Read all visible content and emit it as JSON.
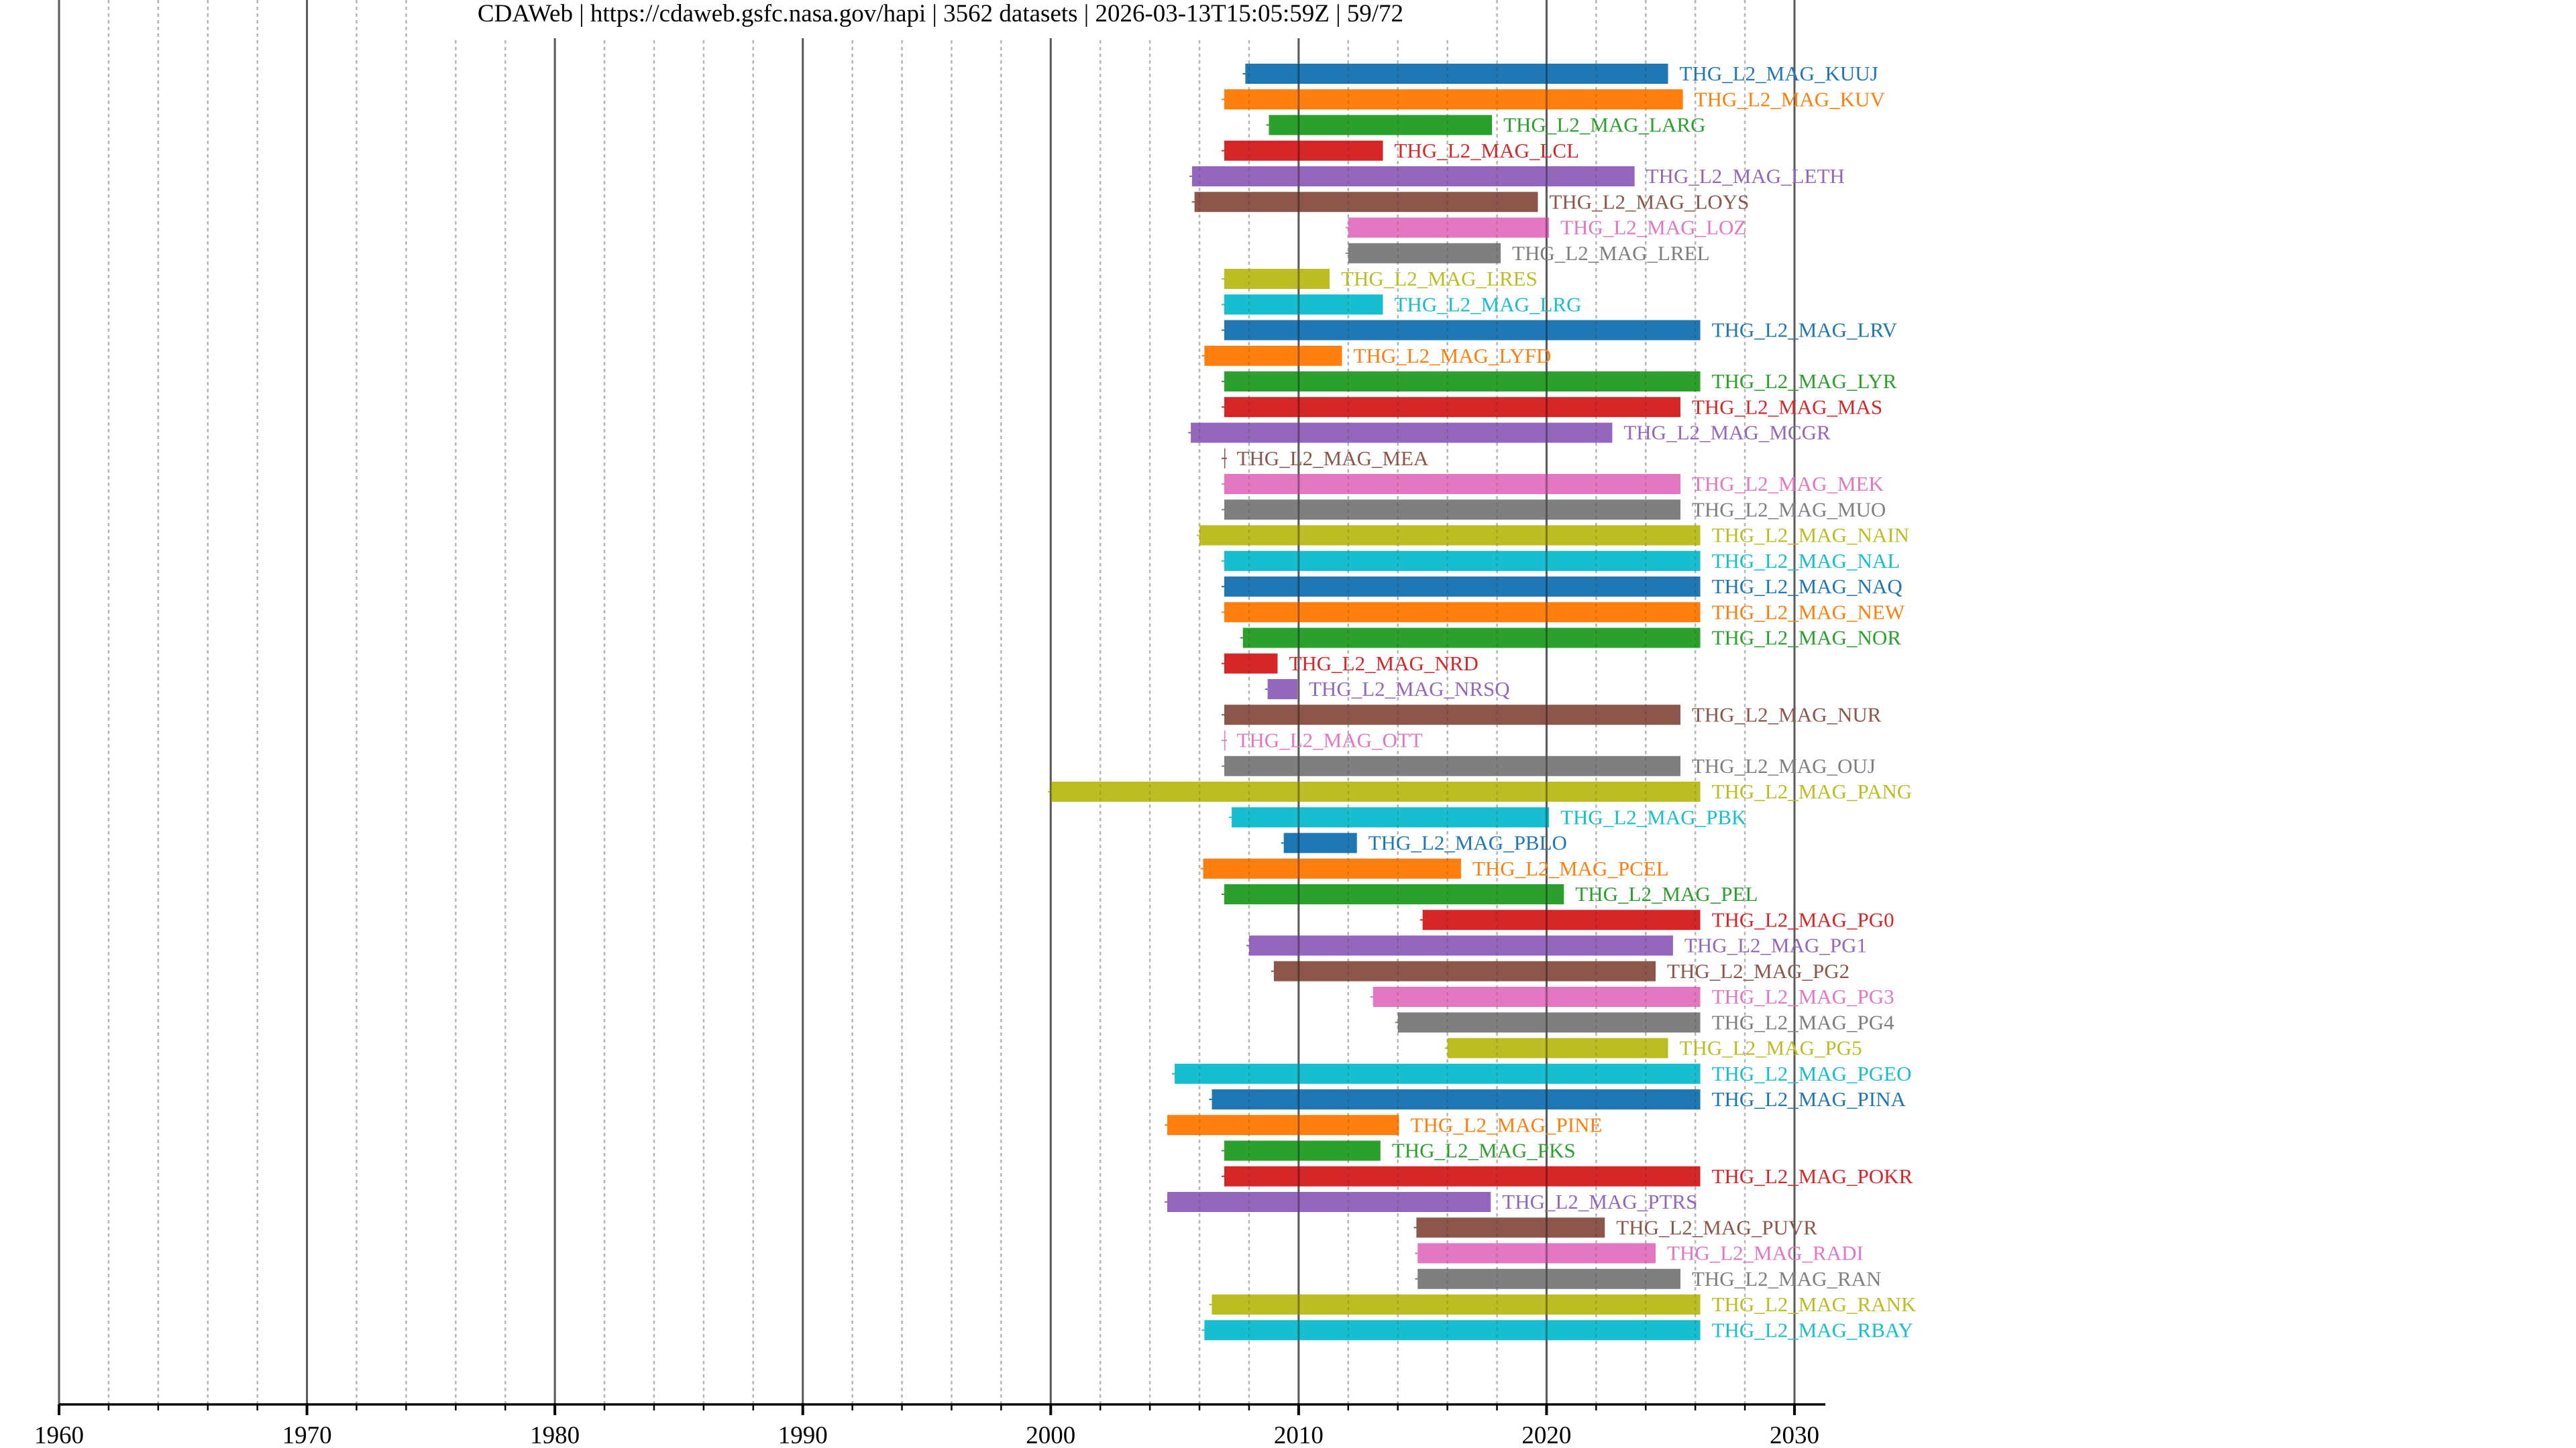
{
  "chart_data": {
    "type": "timeline-bar",
    "title": "CDAWeb | https://cdaweb.gsfc.nasa.gov/hapi | 3562 datasets | 2026-03-13T15:05:59Z | 59/72",
    "xlabel": "",
    "ylabel": "",
    "xlim": [
      1960,
      2031.25
    ],
    "x_ticks_major": [
      1960,
      1970,
      1980,
      1990,
      2000,
      2010,
      2020,
      2030
    ],
    "x_tick_labels": [
      "1960",
      "1970",
      "1980",
      "1990",
      "2000",
      "2010",
      "2020",
      "2030"
    ],
    "x_ticks_minor_step": 2,
    "grid": {
      "major": "solid gray",
      "minor": "dashed light gray"
    },
    "palette": [
      "#1f77b4",
      "#ff7f0e",
      "#2ca02c",
      "#d62728",
      "#9467bd",
      "#8c564b",
      "#e377c2",
      "#7f7f7f",
      "#bcbd22",
      "#17becf"
    ],
    "series": [
      {
        "name": "THG_L2_MAG_KUUJ",
        "start": 2007.85,
        "end": 2024.9
      },
      {
        "name": "THG_L2_MAG_KUV",
        "start": 2007.0,
        "end": 2025.5
      },
      {
        "name": "THG_L2_MAG_LARG",
        "start": 2008.8,
        "end": 2017.8
      },
      {
        "name": "THG_L2_MAG_LCL",
        "start": 2007.0,
        "end": 2013.4
      },
      {
        "name": "THG_L2_MAG_LETH",
        "start": 2005.7,
        "end": 2023.55
      },
      {
        "name": "THG_L2_MAG_LOYS",
        "start": 2005.8,
        "end": 2019.65
      },
      {
        "name": "THG_L2_MAG_LOZ",
        "start": 2012.0,
        "end": 2020.1
      },
      {
        "name": "THG_L2_MAG_LREL",
        "start": 2012.0,
        "end": 2018.15
      },
      {
        "name": "THG_L2_MAG_LRES",
        "start": 2007.0,
        "end": 2011.25
      },
      {
        "name": "THG_L2_MAG_LRG",
        "start": 2007.0,
        "end": 2013.4
      },
      {
        "name": "THG_L2_MAG_LRV",
        "start": 2007.0,
        "end": 2026.2
      },
      {
        "name": "THG_L2_MAG_LYFD",
        "start": 2006.2,
        "end": 2011.75
      },
      {
        "name": "THG_L2_MAG_LYR",
        "start": 2007.0,
        "end": 2026.2
      },
      {
        "name": "THG_L2_MAG_MAS",
        "start": 2007.0,
        "end": 2025.4
      },
      {
        "name": "THG_L2_MAG_MCGR",
        "start": 2005.65,
        "end": 2022.65
      },
      {
        "name": "THG_L2_MAG_MEA",
        "start": 2007.0,
        "end": 2007.03
      },
      {
        "name": "THG_L2_MAG_MEK",
        "start": 2007.0,
        "end": 2025.4
      },
      {
        "name": "THG_L2_MAG_MUO",
        "start": 2007.0,
        "end": 2025.4
      },
      {
        "name": "THG_L2_MAG_NAIN",
        "start": 2006.0,
        "end": 2026.2
      },
      {
        "name": "THG_L2_MAG_NAL",
        "start": 2007.0,
        "end": 2026.2
      },
      {
        "name": "THG_L2_MAG_NAQ",
        "start": 2007.0,
        "end": 2026.2
      },
      {
        "name": "THG_L2_MAG_NEW",
        "start": 2007.0,
        "end": 2026.2
      },
      {
        "name": "THG_L2_MAG_NOR",
        "start": 2007.75,
        "end": 2026.2
      },
      {
        "name": "THG_L2_MAG_NRD",
        "start": 2007.0,
        "end": 2009.15
      },
      {
        "name": "THG_L2_MAG_NRSQ",
        "start": 2008.75,
        "end": 2009.95
      },
      {
        "name": "THG_L2_MAG_NUR",
        "start": 2007.0,
        "end": 2025.4
      },
      {
        "name": "THG_L2_MAG_OTT",
        "start": 2007.0,
        "end": 2007.03
      },
      {
        "name": "THG_L2_MAG_OUJ",
        "start": 2007.0,
        "end": 2025.4
      },
      {
        "name": "THG_L2_MAG_PANG",
        "start": 2000.0,
        "end": 2026.2
      },
      {
        "name": "THG_L2_MAG_PBK",
        "start": 2007.3,
        "end": 2020.1
      },
      {
        "name": "THG_L2_MAG_PBLO",
        "start": 2009.4,
        "end": 2012.35
      },
      {
        "name": "THG_L2_MAG_PCEL",
        "start": 2006.15,
        "end": 2016.55
      },
      {
        "name": "THG_L2_MAG_PEL",
        "start": 2007.0,
        "end": 2020.7
      },
      {
        "name": "THG_L2_MAG_PG0",
        "start": 2015.0,
        "end": 2026.2
      },
      {
        "name": "THG_L2_MAG_PG1",
        "start": 2008.0,
        "end": 2025.1
      },
      {
        "name": "THG_L2_MAG_PG2",
        "start": 2009.0,
        "end": 2024.4
      },
      {
        "name": "THG_L2_MAG_PG3",
        "start": 2013.0,
        "end": 2026.2
      },
      {
        "name": "THG_L2_MAG_PG4",
        "start": 2014.0,
        "end": 2026.2
      },
      {
        "name": "THG_L2_MAG_PG5",
        "start": 2016.0,
        "end": 2024.9
      },
      {
        "name": "THG_L2_MAG_PGEO",
        "start": 2005.0,
        "end": 2026.2
      },
      {
        "name": "THG_L2_MAG_PINA",
        "start": 2006.5,
        "end": 2026.2
      },
      {
        "name": "THG_L2_MAG_PINE",
        "start": 2004.7,
        "end": 2014.05
      },
      {
        "name": "THG_L2_MAG_PKS",
        "start": 2007.0,
        "end": 2013.3
      },
      {
        "name": "THG_L2_MAG_POKR",
        "start": 2007.0,
        "end": 2026.2
      },
      {
        "name": "THG_L2_MAG_PTRS",
        "start": 2004.7,
        "end": 2017.75
      },
      {
        "name": "THG_L2_MAG_PUVR",
        "start": 2014.75,
        "end": 2022.35
      },
      {
        "name": "THG_L2_MAG_RADI",
        "start": 2014.8,
        "end": 2024.4
      },
      {
        "name": "THG_L2_MAG_RAN",
        "start": 2014.8,
        "end": 2025.4
      },
      {
        "name": "THG_L2_MAG_RANK",
        "start": 2006.5,
        "end": 2026.2
      },
      {
        "name": "THG_L2_MAG_RBAY",
        "start": 2006.2,
        "end": 2026.2
      }
    ]
  }
}
